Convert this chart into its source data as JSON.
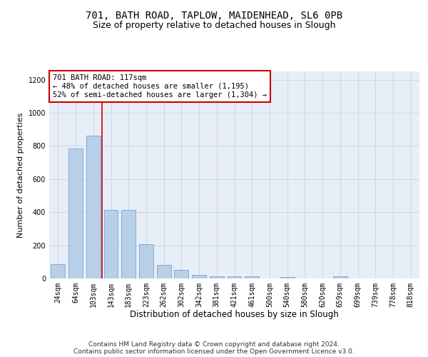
{
  "title1": "701, BATH ROAD, TAPLOW, MAIDENHEAD, SL6 0PB",
  "title2": "Size of property relative to detached houses in Slough",
  "xlabel": "Distribution of detached houses by size in Slough",
  "ylabel": "Number of detached properties",
  "categories": [
    "24sqm",
    "64sqm",
    "103sqm",
    "143sqm",
    "183sqm",
    "223sqm",
    "262sqm",
    "302sqm",
    "342sqm",
    "381sqm",
    "421sqm",
    "461sqm",
    "500sqm",
    "540sqm",
    "580sqm",
    "620sqm",
    "659sqm",
    "699sqm",
    "739sqm",
    "778sqm",
    "818sqm"
  ],
  "values": [
    88,
    785,
    860,
    415,
    415,
    205,
    83,
    53,
    20,
    12,
    12,
    12,
    0,
    10,
    0,
    0,
    12,
    0,
    0,
    0,
    0
  ],
  "bar_color": "#b8cfe8",
  "bar_edge_color": "#6699cc",
  "grid_color": "#d0d8e8",
  "background_color": "#e8eef8",
  "vline_x": 2.5,
  "vline_color": "#cc0000",
  "annotation_text": "701 BATH ROAD: 117sqm\n← 48% of detached houses are smaller (1,195)\n52% of semi-detached houses are larger (1,304) →",
  "annotation_box_color": "#ffffff",
  "annotation_box_edge": "#cc0000",
  "footer_text": "Contains HM Land Registry data © Crown copyright and database right 2024.\nContains public sector information licensed under the Open Government Licence v3.0.",
  "ylim": [
    0,
    1250
  ],
  "yticks": [
    0,
    200,
    400,
    600,
    800,
    1000,
    1200
  ],
  "title1_fontsize": 10,
  "title2_fontsize": 9,
  "xlabel_fontsize": 8.5,
  "ylabel_fontsize": 8,
  "tick_fontsize": 7,
  "annotation_fontsize": 7.5,
  "footer_fontsize": 6.5
}
